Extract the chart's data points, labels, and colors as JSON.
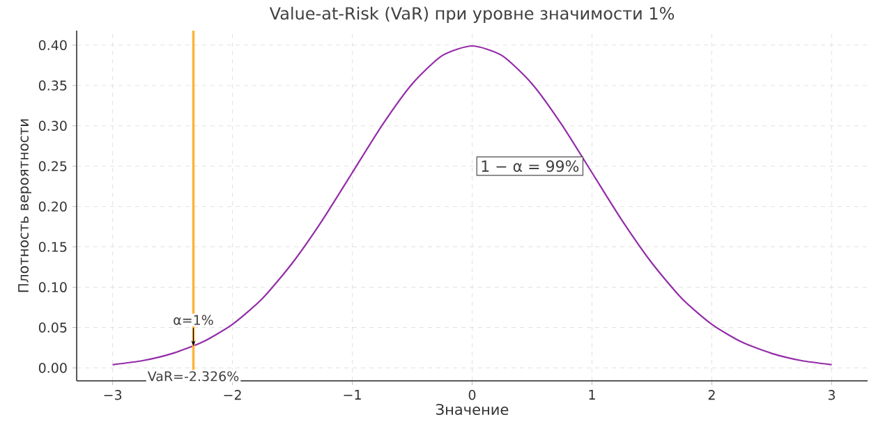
{
  "chart_data": {
    "type": "line",
    "title": "Value-at-Risk (VaR) при уровне значимости 1%",
    "xlabel": "Значение",
    "ylabel": "Плотность вероятности",
    "x": [
      -3,
      -2.75,
      -2.5,
      -2.25,
      -2,
      -1.75,
      -1.5,
      -1.25,
      -1,
      -0.75,
      -0.5,
      -0.25,
      0,
      0.25,
      0.5,
      0.75,
      1,
      1.25,
      1.5,
      1.75,
      2,
      2.25,
      2.5,
      2.75,
      3
    ],
    "series": [
      {
        "color": "#932ca8",
        "values": [
          0.004,
          0.009,
          0.018,
          0.032,
          0.054,
          0.086,
          0.13,
          0.183,
          0.242,
          0.301,
          0.352,
          0.387,
          0.399,
          0.387,
          0.352,
          0.301,
          0.242,
          0.183,
          0.13,
          0.086,
          0.054,
          0.032,
          0.018,
          0.009,
          0.004
        ]
      }
    ],
    "xlim": [
      -3.3,
      3.3
    ],
    "ylim": [
      -0.016,
      0.418
    ],
    "xticks": [
      {
        "value": -3,
        "label": "−3"
      },
      {
        "value": -2,
        "label": "−2"
      },
      {
        "value": -1,
        "label": "−1"
      },
      0,
      1,
      2,
      3
    ],
    "yticks": [
      {
        "value": 0,
        "label": "0.00"
      },
      {
        "value": 0.05,
        "label": "0.05"
      },
      {
        "value": 0.1,
        "label": "0.10"
      },
      {
        "value": 0.15,
        "label": "0.15"
      },
      {
        "value": 0.2,
        "label": "0.20"
      },
      {
        "value": 0.25,
        "label": "0.25"
      },
      {
        "value": 0.3,
        "label": "0.30"
      },
      {
        "value": 0.35,
        "label": "0.35"
      },
      {
        "value": 0.4,
        "label": "0.40"
      }
    ],
    "ref_lines": [
      {
        "axis": "x",
        "value": -2.326,
        "label": "VaR=-2.326%",
        "color": "#ffb43c",
        "line_style": "solid"
      }
    ],
    "annotations": [
      {
        "text": "α=1%",
        "x": -2.326,
        "y": 0.027
      },
      "1 − α = 99%"
    ],
    "grid": true,
    "marker": "none",
    "line_style": "solid"
  }
}
